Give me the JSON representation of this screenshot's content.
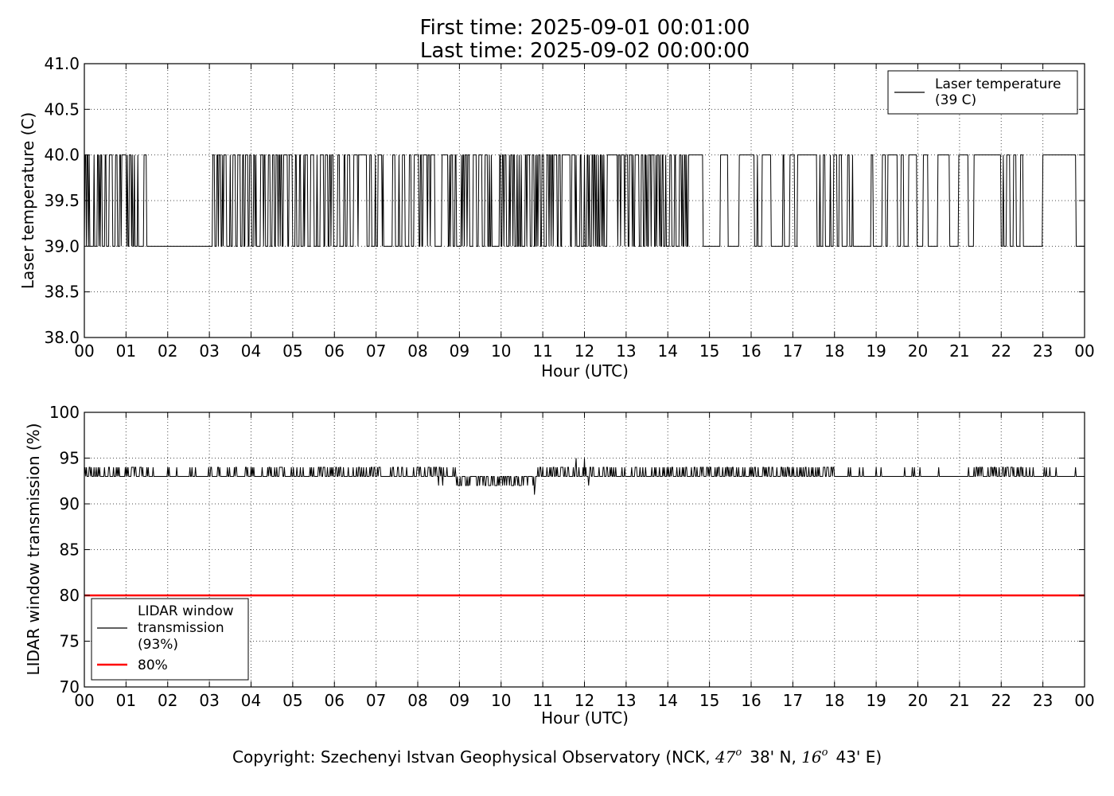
{
  "title_lines": [
    "First time: 2025-09-01 00:01:00",
    "Last time: 2025-09-02 00:00:00"
  ],
  "copyright": {
    "prefix": "Copyright: Szechenyi Istvan Geophysical Observatory (NCK, ",
    "lat_deg": "47",
    "lat_min": "38' N, ",
    "lon_deg": "16",
    "lon_min": "43' E)",
    "degree_mark": "o"
  },
  "chart_data": [
    {
      "type": "line",
      "xlabel": "Hour (UTC)",
      "ylabel": "Laser temperature (C)",
      "xlim": [
        0,
        24
      ],
      "ylim": [
        38.0,
        41.0
      ],
      "xticks": [
        0,
        1,
        2,
        3,
        4,
        5,
        6,
        7,
        8,
        9,
        10,
        11,
        12,
        13,
        14,
        15,
        16,
        17,
        18,
        19,
        20,
        21,
        22,
        23,
        24
      ],
      "xtick_labels": [
        "00",
        "01",
        "02",
        "03",
        "04",
        "05",
        "06",
        "07",
        "08",
        "09",
        "10",
        "11",
        "12",
        "13",
        "14",
        "15",
        "16",
        "17",
        "18",
        "19",
        "20",
        "21",
        "22",
        "23",
        "00"
      ],
      "yticks": [
        38.0,
        38.5,
        39.0,
        39.5,
        40.0,
        40.5,
        41.0
      ],
      "ytick_labels": [
        "38.0",
        "38.5",
        "39.0",
        "39.5",
        "40.0",
        "40.5",
        "41.0"
      ],
      "grid": true,
      "legend_position": "top-right",
      "series": [
        {
          "name": "Laser temperature\n(39 C)",
          "color": "#000000",
          "baseline": 39.0,
          "high": 40.0,
          "pattern": "minute data alternating between 39.0 and 40.0",
          "switch_probability_by_hour": [
            0.75,
            0.75,
            0.12,
            0.75,
            0.8,
            0.8,
            0.45,
            0.6,
            0.65,
            0.85,
            0.8,
            0.7,
            0.7,
            0.8,
            0.8,
            0.15,
            0.3,
            0.3,
            0.2,
            0.25,
            0.35,
            0.25,
            0.5,
            0.15
          ],
          "steady_high_spans": [
            [
              14.5,
              14.85
            ],
            [
              21.35,
              21.7
            ]
          ],
          "steady_low_spans": [
            [
              1.55,
              2.05
            ],
            [
              2.15,
              2.45
            ],
            [
              22.6,
              23.0
            ]
          ]
        }
      ]
    },
    {
      "type": "line",
      "xlabel": "Hour (UTC)",
      "ylabel": "LIDAR window transmission (%)",
      "xlim": [
        0,
        24
      ],
      "ylim": [
        70,
        100
      ],
      "xticks": [
        0,
        1,
        2,
        3,
        4,
        5,
        6,
        7,
        8,
        9,
        10,
        11,
        12,
        13,
        14,
        15,
        16,
        17,
        18,
        19,
        20,
        21,
        22,
        23,
        24
      ],
      "xtick_labels": [
        "00",
        "01",
        "02",
        "03",
        "04",
        "05",
        "06",
        "07",
        "08",
        "09",
        "10",
        "11",
        "12",
        "13",
        "14",
        "15",
        "16",
        "17",
        "18",
        "19",
        "20",
        "21",
        "22",
        "23",
        "00"
      ],
      "yticks": [
        70,
        75,
        80,
        85,
        90,
        95,
        100
      ],
      "ytick_labels": [
        "70",
        "75",
        "80",
        "85",
        "90",
        "95",
        "100"
      ],
      "grid": true,
      "legend_position": "bottom-left",
      "series": [
        {
          "name": "LIDAR window\ntransmission\n(93%)",
          "color": "#000000",
          "baseline": 93,
          "pattern": "minute data mostly 93 with frequent spikes to 94; 92-93 between 08:55 and 10:50",
          "spikes": [
            [
              8.5,
              92
            ],
            [
              8.6,
              92
            ],
            [
              10.8,
              91
            ],
            [
              11.8,
              95
            ],
            [
              12.0,
              95
            ],
            [
              12.1,
              92
            ]
          ]
        },
        {
          "name": "80%",
          "color": "#ff0000",
          "values": [
            80,
            80
          ],
          "x": [
            0,
            24
          ]
        }
      ]
    }
  ]
}
